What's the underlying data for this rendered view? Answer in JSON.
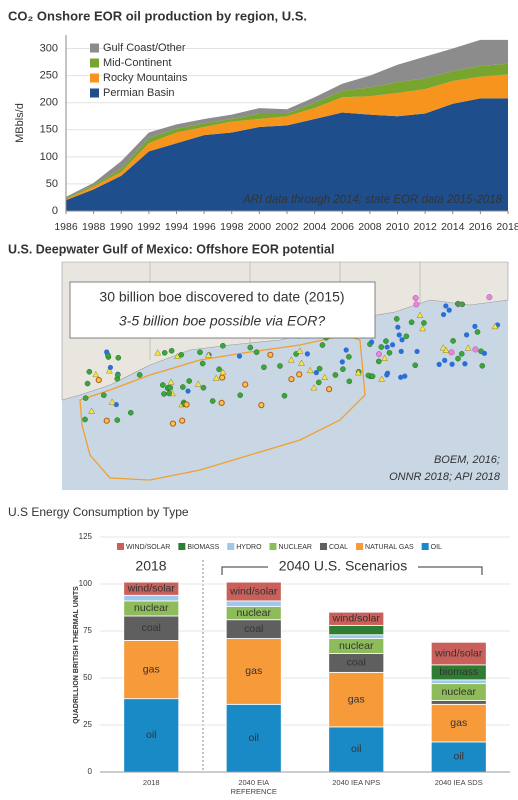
{
  "chart_data": [
    {
      "type": "area",
      "stacked": true,
      "title": "CO₂ Onshore EOR oil production by region, U.S.",
      "y_label": "MBbls/d",
      "annotation": "ARI data through 2014; state EOR data 2015-2018",
      "x": [
        1986,
        1988,
        1990,
        1992,
        1994,
        1996,
        1998,
        2000,
        2002,
        2004,
        2006,
        2008,
        2010,
        2012,
        2014,
        2016,
        2018
      ],
      "xlim": [
        1986,
        2018
      ],
      "xticks": [
        1986,
        1988,
        1990,
        1992,
        1994,
        1996,
        1998,
        2000,
        2002,
        2004,
        2006,
        2008,
        2010,
        2012,
        2014,
        2016,
        2018
      ],
      "ylim": [
        0,
        325
      ],
      "yticks": [
        0,
        50,
        100,
        150,
        200,
        250,
        300
      ],
      "grid": true,
      "legend": "top-left",
      "series": [
        {
          "name": "Permian Basin",
          "color": "#1f4e8c",
          "values": [
            20,
            40,
            65,
            110,
            125,
            140,
            145,
            155,
            158,
            170,
            182,
            178,
            175,
            180,
            198,
            208,
            208
          ]
        },
        {
          "name": "Rocky Mountains",
          "color": "#f7941d",
          "values": [
            2,
            5,
            7,
            15,
            20,
            15,
            20,
            15,
            17,
            20,
            28,
            34,
            43,
            45,
            42,
            40,
            44
          ]
        },
        {
          "name": "Mid-Continent",
          "color": "#77a52d",
          "values": [
            2,
            3,
            6,
            10,
            7,
            7,
            5,
            10,
            5,
            10,
            12,
            16,
            20,
            20,
            18,
            20,
            20
          ]
        },
        {
          "name": "Gulf Coast/Other",
          "color": "#8c8c8c",
          "values": [
            2,
            4,
            14,
            10,
            8,
            8,
            8,
            10,
            8,
            10,
            13,
            22,
            32,
            40,
            42,
            48,
            44
          ]
        }
      ]
    },
    {
      "type": "bar",
      "stacked": true,
      "title": "U.S Energy Consumption by Type",
      "y_label": "QUADRILLION BRITISH THERMAL UNITS",
      "categories": [
        "2018",
        "2040 EIA REFERENCE",
        "2040 IEA NPS",
        "2040 IEA SDS"
      ],
      "annotations": [
        "2018",
        "2040 U.S. Scenarios"
      ],
      "ylim": [
        0,
        125
      ],
      "yticks": [
        0,
        25,
        50,
        75,
        100,
        125
      ],
      "grid": true,
      "legend": "top",
      "series": [
        {
          "name": "OIL",
          "bar_label": "oil",
          "color": "#1a8ac6",
          "values": [
            39,
            36,
            24,
            16
          ]
        },
        {
          "name": "NATURAL GAS",
          "bar_label": "gas",
          "color": "#f79a3a",
          "values": [
            31,
            35,
            29,
            20
          ]
        },
        {
          "name": "COAL",
          "bar_label": "coal",
          "color": "#5f5f5f",
          "values": [
            13,
            10,
            10,
            2
          ]
        },
        {
          "name": "NUCLEAR",
          "bar_label": "nuclear",
          "color": "#8fbc5a",
          "values": [
            8,
            7,
            8,
            9
          ]
        },
        {
          "name": "HYDRO",
          "color": "#9dc9ea",
          "values": [
            3,
            3,
            2,
            2
          ]
        },
        {
          "name": "BIOMASS",
          "bar_label": "biomass",
          "color": "#2e7d32",
          "values": [
            0,
            0,
            5,
            8
          ]
        },
        {
          "name": "WIND/SOLAR",
          "bar_label": "wind/solar",
          "color": "#c9605b",
          "values": [
            7,
            10,
            7,
            12
          ]
        }
      ]
    }
  ],
  "map_panel": {
    "title": "U.S. Deepwater Gulf of Mexico: Offshore EOR potential",
    "callout": [
      "30 billion boe discovered to date (2015)",
      "3-5 billion boe possible via EOR?"
    ],
    "credit": [
      "BOEM, 2016;",
      "ONNR 2018; API 2018"
    ]
  }
}
